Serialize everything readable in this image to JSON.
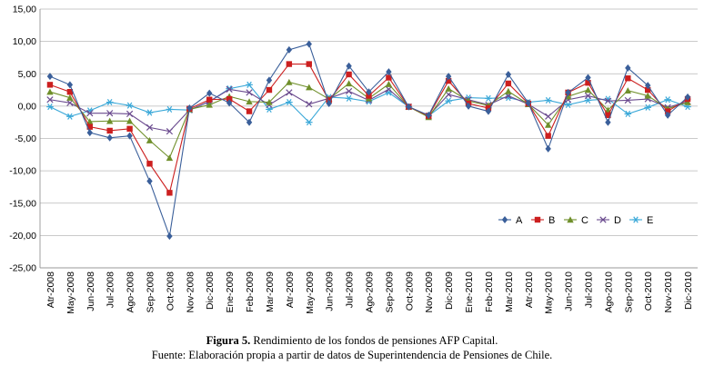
{
  "chart_data": {
    "type": "line",
    "title": "",
    "xlabel": "",
    "ylabel": "",
    "ylim": [
      -25,
      15
    ],
    "yticks": [
      "15,00",
      "10,00",
      "5,00",
      "0,00",
      "-5,00",
      "-10,00",
      "-15,00",
      "-20,00",
      "-25,00"
    ],
    "grid": "horizontal",
    "legend_placement": "bottom-right",
    "categories": [
      "Atr-2008",
      "May-2008",
      "Jun-2008",
      "Jul-2008",
      "Ago-2008",
      "Sep-2008",
      "Oct-2008",
      "Nov-2008",
      "Dic-2008",
      "Ene-2009",
      "Feb-2009",
      "Mar-2009",
      "Atr-2009",
      "May-2009",
      "Jun-2009",
      "Jul-2009",
      "Ago-2009",
      "Sep-2009",
      "Oct-2009",
      "Nov-2009",
      "Dic-2009",
      "Ene-2010",
      "Feb-2010",
      "Mar-2010",
      "Atr-2010",
      "May-2010",
      "Jun-2010",
      "Jul-2010",
      "Ago-2010",
      "Sep-2010",
      "Oct-2010",
      "Nov-2010",
      "Dic-2010"
    ],
    "series": [
      {
        "name": "A",
        "color": "#3a5f9a",
        "marker": "diamond",
        "values": [
          4.6,
          3.3,
          -4.1,
          -4.9,
          -4.6,
          -11.6,
          -20.1,
          -0.3,
          2.0,
          0.5,
          -2.5,
          4.0,
          8.7,
          9.6,
          0.4,
          6.2,
          2.2,
          5.3,
          -0.1,
          -1.4,
          4.6,
          0.0,
          -0.8,
          4.9,
          0.5,
          -6.6,
          2.1,
          4.4,
          -2.5,
          5.9,
          3.2,
          -1.4,
          1.4
        ]
      },
      {
        "name": "B",
        "color": "#cc1f1f",
        "marker": "square",
        "values": [
          3.3,
          2.2,
          -3.2,
          -3.8,
          -3.5,
          -8.9,
          -13.4,
          -0.4,
          1.0,
          1.1,
          -0.8,
          2.5,
          6.5,
          6.5,
          0.9,
          4.9,
          1.6,
          4.4,
          -0.1,
          -1.5,
          3.9,
          0.4,
          -0.3,
          3.5,
          0.4,
          -4.6,
          2.1,
          3.6,
          -1.4,
          4.3,
          2.5,
          -0.8,
          1.1
        ]
      },
      {
        "name": "C",
        "color": "#6f8f2a",
        "marker": "triangle",
        "values": [
          2.2,
          1.3,
          -2.4,
          -2.3,
          -2.3,
          -5.3,
          -8.0,
          -0.5,
          0.2,
          1.5,
          0.7,
          0.6,
          3.7,
          2.9,
          1.1,
          3.5,
          1.2,
          3.4,
          -0.1,
          -1.7,
          2.7,
          0.8,
          0.1,
          2.3,
          0.3,
          -2.9,
          1.5,
          2.5,
          -0.6,
          2.4,
          1.6,
          -0.4,
          0.6
        ]
      },
      {
        "name": "D",
        "color": "#6a4a8e",
        "marker": "x",
        "values": [
          1.0,
          0.5,
          -1.1,
          -1.1,
          -1.2,
          -3.3,
          -3.9,
          -0.6,
          0.7,
          2.6,
          2.1,
          0.2,
          2.1,
          0.3,
          1.2,
          2.3,
          0.9,
          2.6,
          -0.1,
          -1.5,
          1.8,
          1.0,
          0.2,
          1.6,
          0.3,
          -1.6,
          1.0,
          1.6,
          0.8,
          0.9,
          1.1,
          -0.2,
          0.7
        ]
      },
      {
        "name": "E",
        "color": "#3aa8d8",
        "marker": "asterisk",
        "values": [
          -0.1,
          -1.6,
          -0.7,
          0.6,
          0.1,
          -1.0,
          -0.5,
          -0.6,
          0.7,
          2.7,
          3.3,
          -0.5,
          0.6,
          -2.5,
          1.4,
          1.2,
          0.7,
          2.1,
          -0.1,
          -1.5,
          0.8,
          1.3,
          1.2,
          1.3,
          0.6,
          0.9,
          0.2,
          0.9,
          1.1,
          -1.2,
          -0.2,
          1.0,
          -0.1
        ]
      }
    ]
  },
  "caption": {
    "figure_label": "Figura 5.",
    "figure_text": " Rendimiento de los fondos de pensiones AFP Capital.",
    "source": "Fuente: Elaboración propia a partir de datos de Superintendencia de Pensiones de Chile."
  }
}
